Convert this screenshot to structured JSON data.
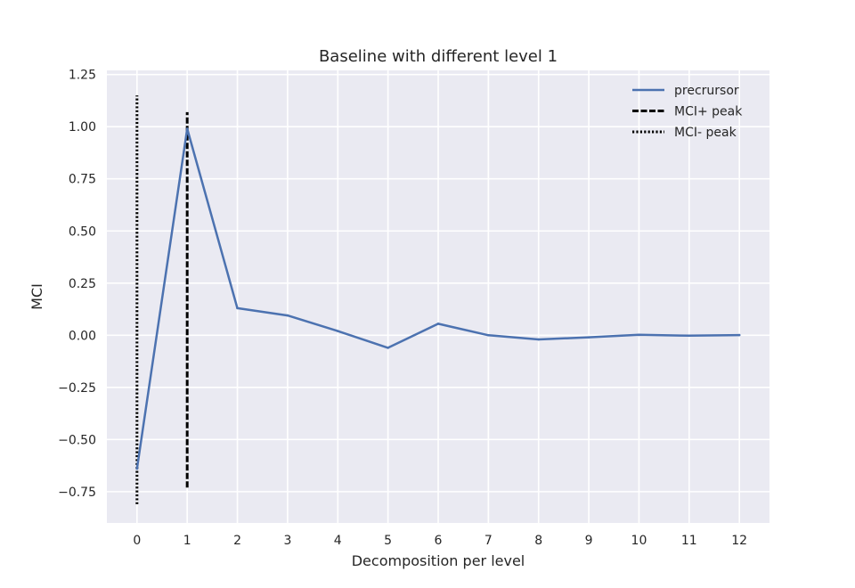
{
  "chart_data": {
    "type": "line",
    "title": "Baseline with different level 1",
    "xlabel": "Decomposition per level",
    "ylabel": "MCI",
    "xlim": [
      -0.6,
      12.6
    ],
    "ylim": [
      -0.9,
      1.27
    ],
    "x_ticks": [
      0,
      1,
      2,
      3,
      4,
      5,
      6,
      7,
      8,
      9,
      10,
      11,
      12
    ],
    "x_tick_labels": [
      "0",
      "1",
      "2",
      "3",
      "4",
      "5",
      "6",
      "7",
      "8",
      "9",
      "10",
      "11",
      "12"
    ],
    "y_ticks": [
      -0.75,
      -0.5,
      -0.25,
      0.0,
      0.25,
      0.5,
      0.75,
      1.0,
      1.25
    ],
    "y_tick_labels": [
      "−0.75",
      "−0.50",
      "−0.25",
      "0.00",
      "0.25",
      "0.50",
      "0.75",
      "1.00",
      "1.25"
    ],
    "grid": true,
    "legend_position": "top-right",
    "series": [
      {
        "name": "precrursor",
        "style": "solid",
        "color": "#4c72b0",
        "x": [
          0,
          1,
          2,
          3,
          4,
          5,
          6,
          7,
          8,
          9,
          10,
          11,
          12
        ],
        "values": [
          -0.64,
          0.99,
          0.13,
          0.095,
          0.02,
          -0.06,
          0.055,
          0.0,
          -0.02,
          -0.01,
          0.002,
          -0.002,
          0.001
        ]
      }
    ],
    "vlines": [
      {
        "name": "MCI+ peak",
        "style": "dashed",
        "color": "#000000",
        "x": 1,
        "ymin": -0.73,
        "ymax": 1.07
      },
      {
        "name": "MCI- peak",
        "style": "dotted",
        "color": "#000000",
        "x": 0,
        "ymin": -0.81,
        "ymax": 1.15
      }
    ],
    "colors": {
      "plot_background": "#eaeaf2",
      "grid": "#ffffff",
      "text": "#262626"
    }
  }
}
